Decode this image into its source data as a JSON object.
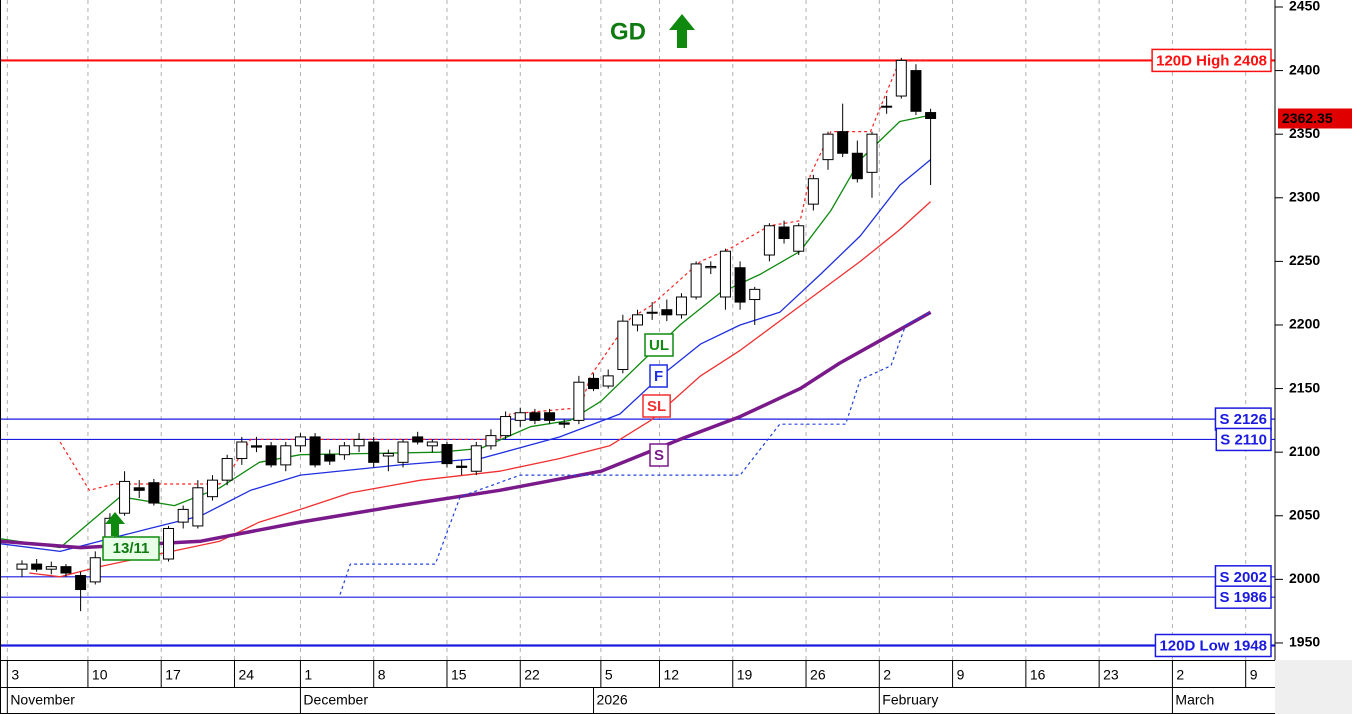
{
  "chart_data": {
    "type": "candlestick",
    "xlim": [
      -1.5,
      85.5
    ],
    "ylim": [
      1936.6,
      2455.5
    ],
    "yticks": [
      1950,
      2000,
      2050,
      2100,
      2150,
      2200,
      2250,
      2300,
      2350,
      2400,
      2450
    ],
    "xticks": [
      {
        "value": -1,
        "label": "3"
      },
      {
        "value": 4.5,
        "label": "10"
      },
      {
        "value": 9.5,
        "label": "17"
      },
      {
        "value": 14.5,
        "label": "24"
      },
      {
        "value": 19,
        "label": "1"
      },
      {
        "value": 24,
        "label": "8"
      },
      {
        "value": 29,
        "label": "15"
      },
      {
        "value": 34,
        "label": "22"
      },
      {
        "value": 39.5,
        "label": "5"
      },
      {
        "value": 43.5,
        "label": "12"
      },
      {
        "value": 48.5,
        "label": "19"
      },
      {
        "value": 53.5,
        "label": "26"
      },
      {
        "value": 58.5,
        "label": "2"
      },
      {
        "value": 63.5,
        "label": "9"
      },
      {
        "value": 68.5,
        "label": "16"
      },
      {
        "value": 73.5,
        "label": "23"
      },
      {
        "value": 78.5,
        "label": "2"
      },
      {
        "value": 83.5,
        "label": "9"
      }
    ],
    "month_ticks": [
      {
        "value": -1,
        "label": "November"
      },
      {
        "value": 19,
        "label": "December"
      },
      {
        "value": 39,
        "label": "2026"
      },
      {
        "value": 58.5,
        "label": "February"
      },
      {
        "value": 78.5,
        "label": "March"
      }
    ],
    "grid": true,
    "candles": {
      "open": [
        2008,
        2012,
        2008,
        2010,
        2003,
        1998,
        2020,
        2052,
        2072,
        2076,
        2016,
        2045,
        2042,
        2065,
        2078,
        2095,
        2105,
        2105,
        2090,
        2105,
        2112,
        2098,
        2098,
        2105,
        2108,
        2097,
        2092,
        2112,
        2105,
        2106,
        2089,
        2085,
        2105,
        2113,
        2125,
        2131,
        2131,
        2123,
        2125,
        2158,
        2152,
        2165,
        2200,
        2210,
        2212,
        2208,
        2222,
        2245,
        2222,
        2245,
        2220,
        2255,
        2277,
        2258,
        2295,
        2330,
        2352,
        2335,
        2320,
        2372,
        2380,
        2400,
        2367
      ],
      "high": [
        2015,
        2016,
        2014,
        2012,
        2006,
        2022,
        2052,
        2085,
        2078,
        2079,
        2042,
        2058,
        2078,
        2082,
        2098,
        2112,
        2112,
        2108,
        2108,
        2115,
        2115,
        2102,
        2108,
        2115,
        2112,
        2102,
        2110,
        2116,
        2110,
        2108,
        2094,
        2108,
        2118,
        2132,
        2135,
        2134,
        2134,
        2126,
        2160,
        2162,
        2165,
        2208,
        2212,
        2218,
        2220,
        2225,
        2250,
        2250,
        2260,
        2250,
        2230,
        2280,
        2282,
        2280,
        2318,
        2352,
        2374,
        2345,
        2352,
        2380,
        2410,
        2405,
        2370
      ],
      "low": [
        2002,
        2006,
        2004,
        2002,
        1975,
        1996,
        2018,
        2050,
        2064,
        2058,
        2014,
        2040,
        2040,
        2062,
        2074,
        2090,
        2100,
        2088,
        2085,
        2100,
        2088,
        2090,
        2094,
        2100,
        2088,
        2085,
        2088,
        2106,
        2100,
        2088,
        2082,
        2082,
        2102,
        2110,
        2120,
        2122,
        2122,
        2119,
        2122,
        2148,
        2150,
        2162,
        2195,
        2204,
        2203,
        2205,
        2220,
        2240,
        2212,
        2212,
        2200,
        2250,
        2264,
        2255,
        2290,
        2322,
        2332,
        2312,
        2300,
        2366,
        2378,
        2365,
        2310
      ],
      "close": [
        2012,
        2008,
        2010,
        2005,
        1992,
        2017,
        2048,
        2077,
        2070,
        2060,
        2040,
        2055,
        2072,
        2078,
        2095,
        2108,
        2104,
        2090,
        2105,
        2112,
        2090,
        2093,
        2105,
        2110,
        2092,
        2099,
        2108,
        2108,
        2108,
        2091,
        2088,
        2105,
        2113,
        2128,
        2131,
        2125,
        2125,
        2122,
        2155,
        2150,
        2160,
        2203,
        2208,
        2210,
        2208,
        2222,
        2248,
        2246,
        2258,
        2218,
        2228,
        2278,
        2268,
        2278,
        2315,
        2350,
        2335,
        2315,
        2350,
        2372,
        2408,
        2368,
        2362.35
      ]
    },
    "series": [
      {
        "name": "UL",
        "color": "#108a10",
        "width": 1.3,
        "x": [
          -1.5,
          2.6,
          6.7,
          10.4,
          13.5,
          16.2,
          19,
          28.5,
          31.3,
          34.7,
          37.4,
          39.5,
          42.2,
          44.9,
          47.6,
          50.4,
          53.1,
          55.2,
          57.2,
          59.9,
          62
        ],
        "values": [
          2032,
          2025,
          2065,
          2058,
          2072,
          2092,
          2098,
          2100,
          2103,
          2120,
          2125,
          2140,
          2170,
          2200,
          2225,
          2240,
          2258,
          2290,
          2330,
          2360,
          2365
        ]
      },
      {
        "name": "F",
        "color": "#1f2fe0",
        "width": 1.3,
        "x": [
          -1.5,
          2.6,
          5.3,
          8.7,
          12.2,
          15.6,
          19,
          25.8,
          31.3,
          36.7,
          40.8,
          43.6,
          46.3,
          49,
          51.7,
          54.5,
          57.2,
          59.9,
          62
        ],
        "values": [
          2028,
          2022,
          2030,
          2040,
          2050,
          2070,
          2082,
          2090,
          2095,
          2112,
          2130,
          2160,
          2185,
          2200,
          2210,
          2240,
          2270,
          2310,
          2330
        ]
      },
      {
        "name": "SL",
        "color": "#f03030",
        "width": 1.3,
        "x": [
          0.5,
          2.6,
          5.3,
          9.4,
          13.5,
          16.2,
          19,
          22.4,
          27.2,
          32.6,
          36.7,
          40.1,
          42.9,
          46.3,
          49,
          53.1,
          57.2,
          59.9,
          62
        ],
        "values": [
          2005,
          2002,
          2010,
          2020,
          2030,
          2045,
          2055,
          2068,
          2078,
          2085,
          2095,
          2105,
          2125,
          2160,
          2180,
          2215,
          2250,
          2275,
          2297
        ]
      },
      {
        "name": "S",
        "color": "#7a1a8a",
        "width": 3.5,
        "x": [
          -1.5,
          4,
          12.2,
          19,
          25.8,
          32.6,
          39.5,
          44.9,
          49,
          53.1,
          55.8,
          58.6,
          62
        ],
        "values": [
          2030,
          2025,
          2030,
          2045,
          2058,
          2070,
          2085,
          2110,
          2128,
          2150,
          2170,
          2188,
          2210
        ]
      },
      {
        "color": "#ff2020",
        "width": 1.2,
        "dash": true,
        "x": [
          2.6,
          4.6,
          6.3,
          13.5,
          14.5,
          15.6,
          32.6,
          33.3,
          38.1,
          38.8,
          41.5,
          42.9,
          46.3,
          48.3,
          51,
          53.1,
          53.8,
          55.2,
          57.9,
          58.6,
          59.9,
          62
        ],
        "values": [
          2108,
          2070,
          2075,
          2075,
          2090,
          2110,
          2110,
          2130,
          2135,
          2160,
          2205,
          2215,
          2250,
          2260,
          2278,
          2282,
          2318,
          2352,
          2352,
          2372,
          2408,
          2408
        ]
      },
      {
        "color": "#2040e0",
        "width": 1.2,
        "dash": true,
        "x": [
          21.7,
          22.4,
          28.2,
          29.9,
          34,
          49,
          51.7,
          56.2,
          57.2,
          59.3,
          60.3,
          62
        ],
        "values": [
          1988,
          2012,
          2012,
          2065,
          2082,
          2082,
          2122,
          2122,
          2157,
          2168,
          2200,
          2210
        ]
      }
    ],
    "levels": [
      {
        "label": "120D High 2408",
        "value": 2408,
        "color": "#ff1010",
        "thick": true
      },
      {
        "label": "S 2126",
        "value": 2126,
        "color": "#1a1ae0",
        "thick": false
      },
      {
        "label": "S 2110",
        "value": 2110,
        "color": "#1a1ae0",
        "thick": false
      },
      {
        "label": "S 2002",
        "value": 2002,
        "color": "#1a1ae0",
        "thick": false
      },
      {
        "label": "S 1986",
        "value": 1986,
        "color": "#1a1ae0",
        "thick": false
      },
      {
        "label": "120D Low 1948",
        "value": 1948,
        "color": "#1a1ae0",
        "thick": true
      }
    ],
    "last_price": 2362.35,
    "annotations": [
      "GD",
      "13/11"
    ]
  }
}
